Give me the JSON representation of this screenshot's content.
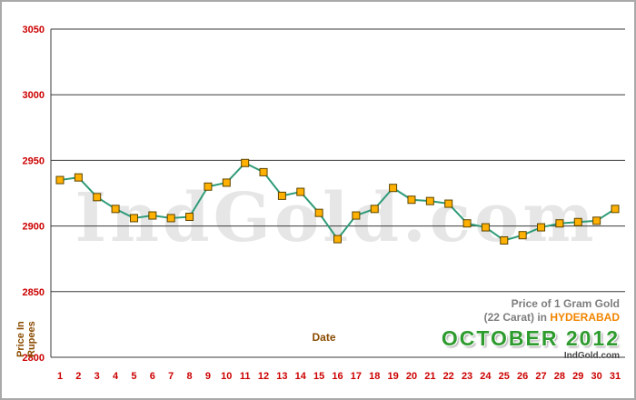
{
  "chart_data": {
    "type": "line",
    "title": "Gold price per 1 gram (22 carat), Hyderabad, October 2012",
    "x": [
      1,
      2,
      3,
      4,
      5,
      6,
      7,
      8,
      9,
      10,
      11,
      12,
      13,
      14,
      15,
      16,
      17,
      18,
      19,
      20,
      21,
      22,
      23,
      24,
      25,
      26,
      27,
      28,
      29,
      30,
      31
    ],
    "values": [
      2935,
      2937,
      2922,
      2913,
      2906,
      2908,
      2906,
      2907,
      2930,
      2933,
      2948,
      2941,
      2923,
      2926,
      2910,
      2890,
      2908,
      2913,
      2929,
      2920,
      2919,
      2917,
      2902,
      2899,
      2889,
      2893,
      2899,
      2902,
      2903,
      2904,
      2913
    ],
    "xlabel": "Date",
    "ylabel_lines": [
      "Price In",
      "Rupees"
    ],
    "ylim": [
      2800,
      3050
    ],
    "yticks": [
      2800,
      2850,
      2900,
      2950,
      3000,
      3050
    ],
    "grid": "horizontal",
    "legend": "none",
    "line_color": "#2e9b78",
    "marker_color": "#ffb000",
    "marker_border": "#5a4500",
    "tick_color": "#cc0000",
    "axis_label_color": "#8a4b00",
    "gridline_color": "#3a3a3a"
  },
  "watermark": "IndGold.com",
  "caption": {
    "line1": "Price of 1 Gram Gold",
    "line2_prefix": "(22 Carat) in ",
    "city": "HYDERABAD",
    "city_color": "#f28500",
    "month": "OCTOBER 2012",
    "month_color": "#2e9b2e",
    "site": "IndGold.com"
  }
}
